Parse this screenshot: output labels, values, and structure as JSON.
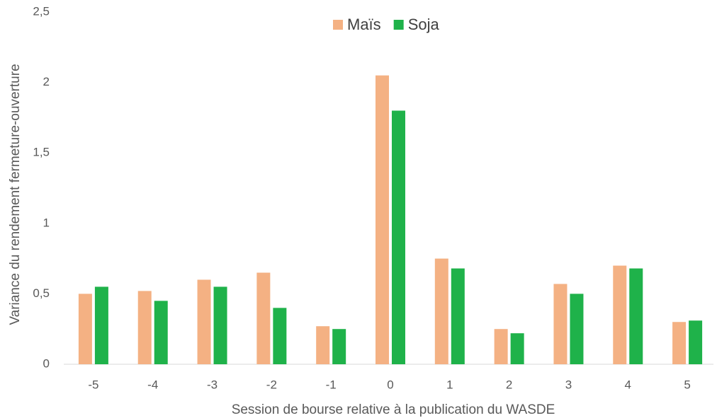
{
  "chart_data": {
    "type": "bar",
    "x_label": "Session de bourse relative à la publication du WASDE",
    "y_label": "Variance du rendement fermeture-ouverture",
    "categories": [
      "-5",
      "-4",
      "-3",
      "-2",
      "-1",
      "0",
      "1",
      "2",
      "3",
      "4",
      "5"
    ],
    "series": [
      {
        "name": "Maïs",
        "color": "#f4b183",
        "values": [
          0.5,
          0.52,
          0.6,
          0.65,
          0.27,
          2.05,
          0.75,
          0.25,
          0.57,
          0.7,
          0.3
        ]
      },
      {
        "name": "Soja",
        "color": "#1fb24a",
        "values": [
          0.55,
          0.45,
          0.55,
          0.4,
          0.25,
          1.8,
          0.68,
          0.22,
          0.5,
          0.68,
          0.31
        ]
      }
    ],
    "ylim": [
      0,
      2.5
    ],
    "yticks": [
      0,
      {
        "value": 0.5,
        "label": "0,5"
      },
      1,
      {
        "value": 1.5,
        "label": "1,5"
      },
      2,
      {
        "value": 2.5,
        "label": "2,5"
      }
    ],
    "legend": "top",
    "grid": false
  }
}
